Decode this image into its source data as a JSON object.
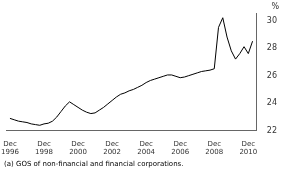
{
  "chart_data": {
    "type": "line",
    "ylabel": "%",
    "footnote": "(a) GOS of non-financial and financial corporations.",
    "color": "#000000",
    "grid": false,
    "xlim": [
      -0.2,
      14.5
    ],
    "xticks": [
      {
        "value": 0,
        "label": "Dec\n1996"
      },
      {
        "value": 2,
        "label": "Dec\n1998"
      },
      {
        "value": 4,
        "label": "Dec\n2000"
      },
      {
        "value": 6,
        "label": "Dec\n2002"
      },
      {
        "value": 8,
        "label": "Dec\n2004"
      },
      {
        "value": 10,
        "label": "Dec\n2006"
      },
      {
        "value": 12,
        "label": "Dec\n2008"
      },
      {
        "value": 14,
        "label": "Dec\n2010"
      }
    ],
    "ylim": [
      22,
      30.5
    ],
    "yticks": [
      22,
      24,
      26,
      28,
      30
    ],
    "x": [
      0.0,
      0.25,
      0.5,
      0.75,
      1.0,
      1.25,
      1.5,
      1.75,
      2.0,
      2.25,
      2.5,
      2.75,
      3.0,
      3.25,
      3.5,
      3.75,
      4.0,
      4.25,
      4.5,
      4.75,
      5.0,
      5.25,
      5.5,
      5.75,
      6.0,
      6.25,
      6.5,
      6.75,
      7.0,
      7.25,
      7.5,
      7.75,
      8.0,
      8.25,
      8.5,
      8.75,
      9.0,
      9.25,
      9.5,
      9.75,
      10.0,
      10.25,
      10.5,
      10.75,
      11.0,
      11.25,
      11.5,
      11.75,
      12.0,
      12.25,
      12.5,
      12.75,
      13.0,
      13.25,
      13.5,
      13.75,
      14.0,
      14.25
    ],
    "values": [
      22.9,
      22.8,
      22.7,
      22.65,
      22.6,
      22.5,
      22.45,
      22.4,
      22.5,
      22.55,
      22.7,
      23.0,
      23.4,
      23.8,
      24.1,
      23.9,
      23.7,
      23.5,
      23.35,
      23.25,
      23.3,
      23.5,
      23.7,
      23.95,
      24.2,
      24.45,
      24.65,
      24.75,
      24.9,
      25.0,
      25.15,
      25.3,
      25.5,
      25.65,
      25.75,
      25.85,
      25.95,
      26.05,
      26.05,
      25.95,
      25.85,
      25.9,
      26.0,
      26.1,
      26.2,
      26.3,
      26.35,
      26.4,
      26.5,
      29.5,
      30.2,
      28.8,
      27.8,
      27.2,
      27.6,
      28.1,
      27.6,
      28.5
    ]
  }
}
